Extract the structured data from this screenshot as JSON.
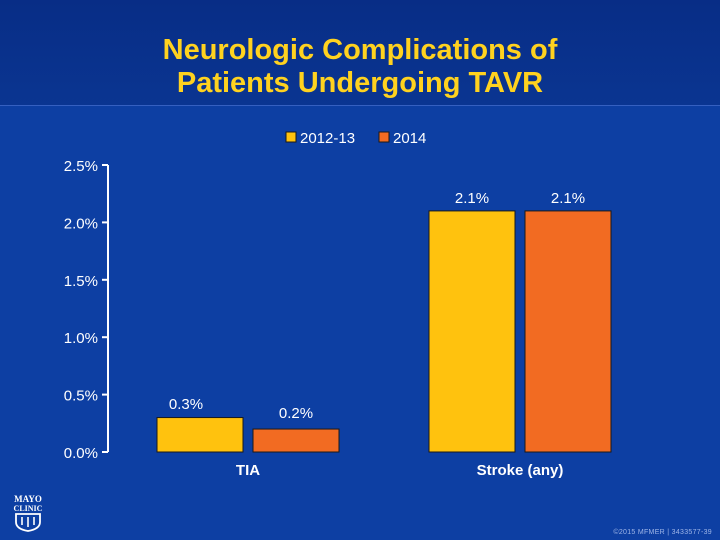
{
  "header": {
    "title_line1": "Neurologic Complications of",
    "title_line2": "Patients Undergoing TAVR"
  },
  "footer": {
    "copyright": "©2015 MFMER | 3433577-39"
  },
  "logo": {
    "line1": "MAYO",
    "line2": "CLINIC"
  },
  "colors": {
    "series_2012_13": "#ffc20e",
    "series_2014": "#f26b22",
    "axis": "#ffffff",
    "text": "#ffffff",
    "title": "#ffd21f"
  },
  "chart_data": {
    "type": "bar",
    "categories": [
      "TIA",
      "Stroke (any)"
    ],
    "series": [
      {
        "name": "2012-13",
        "values": [
          0.3,
          2.1
        ],
        "labels": [
          "0.3%",
          "2.1%"
        ]
      },
      {
        "name": "2014",
        "values": [
          0.2,
          2.1
        ],
        "labels": [
          "0.2%",
          "2.1%"
        ]
      }
    ],
    "yticks": [
      0,
      0.5,
      1.0,
      1.5,
      2.0,
      2.5
    ],
    "ytick_labels": [
      "0.0%",
      "0.5%",
      "1.0%",
      "1.5%",
      "2.0%",
      "2.5%"
    ],
    "ylim": [
      0,
      2.5
    ],
    "grid": false,
    "legend_position": "top"
  }
}
